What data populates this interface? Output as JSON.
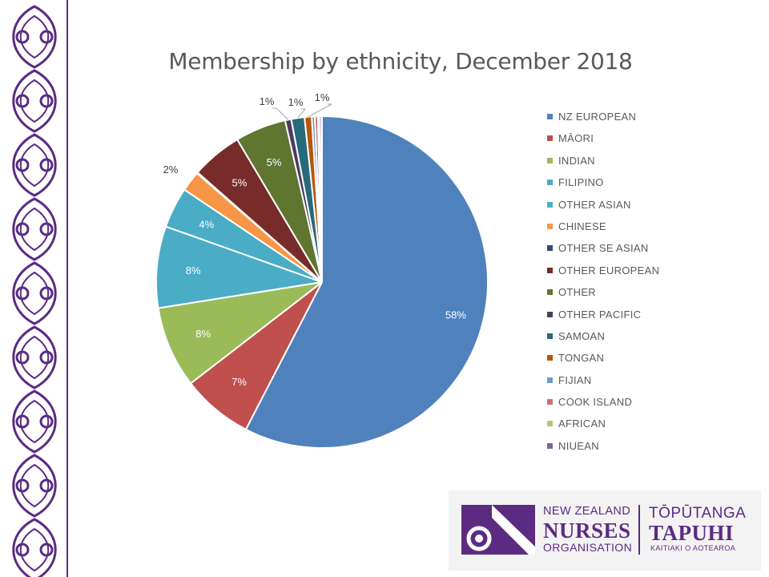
{
  "chart_data": {
    "type": "pie",
    "title": "Membership by ethnicity, December 2018",
    "legend_position": "right",
    "slices": [
      {
        "label": "NZ EUROPEAN",
        "value": 58,
        "display": "58%",
        "color": "#4f81bd"
      },
      {
        "label": "MĀORI",
        "value": 7,
        "display": "7%",
        "color": "#c0504d"
      },
      {
        "label": "INDIAN",
        "value": 8,
        "display": "8%",
        "color": "#9bbb59"
      },
      {
        "label": "FILIPINO",
        "value": 8,
        "display": "8%",
        "color": "#4bacc6"
      },
      {
        "label": "OTHER ASIAN",
        "value": 4,
        "display": "4%",
        "color": "#4bacc6"
      },
      {
        "label": "CHINESE",
        "value": 2,
        "display": "2%",
        "color": "#f79646"
      },
      {
        "label": "OTHER SE ASIAN",
        "value": 0.1,
        "display": "",
        "color": "#2c4d75"
      },
      {
        "label": "OTHER EUROPEAN",
        "value": 5,
        "display": "5%",
        "color": "#772c2a"
      },
      {
        "label": "OTHER",
        "value": 5,
        "display": "5%",
        "color": "#5f7530"
      },
      {
        "label": "OTHER PACIFIC",
        "value": 0.6,
        "display": "1%",
        "color": "#4d3b62"
      },
      {
        "label": "SAMOAN",
        "value": 1.3,
        "display": "1%",
        "color": "#276a7c"
      },
      {
        "label": "TONGAN",
        "value": 0.7,
        "display": "1%",
        "color": "#b65708"
      },
      {
        "label": "FIJIAN",
        "value": 0.3,
        "display": "",
        "color": "#729aca"
      },
      {
        "label": "COOK ISLAND",
        "value": 0.3,
        "display": "",
        "color": "#cd7371"
      },
      {
        "label": "AFRICAN",
        "value": 0.2,
        "display": "",
        "color": "#afc97a"
      },
      {
        "label": "NIUEAN",
        "value": 0.2,
        "display": "",
        "color": "#8064a2"
      }
    ]
  },
  "logo": {
    "line1": "NEW ZEALAND",
    "line2": "NURSES",
    "line3": "ORGANISATION",
    "maori1": "TŌPŪTANGA",
    "maori2": "TAPUHI",
    "maori3": "KAITIAKI O AOTEAROA",
    "color": "#5b2b82"
  },
  "border": {
    "color": "#5b2b82"
  }
}
